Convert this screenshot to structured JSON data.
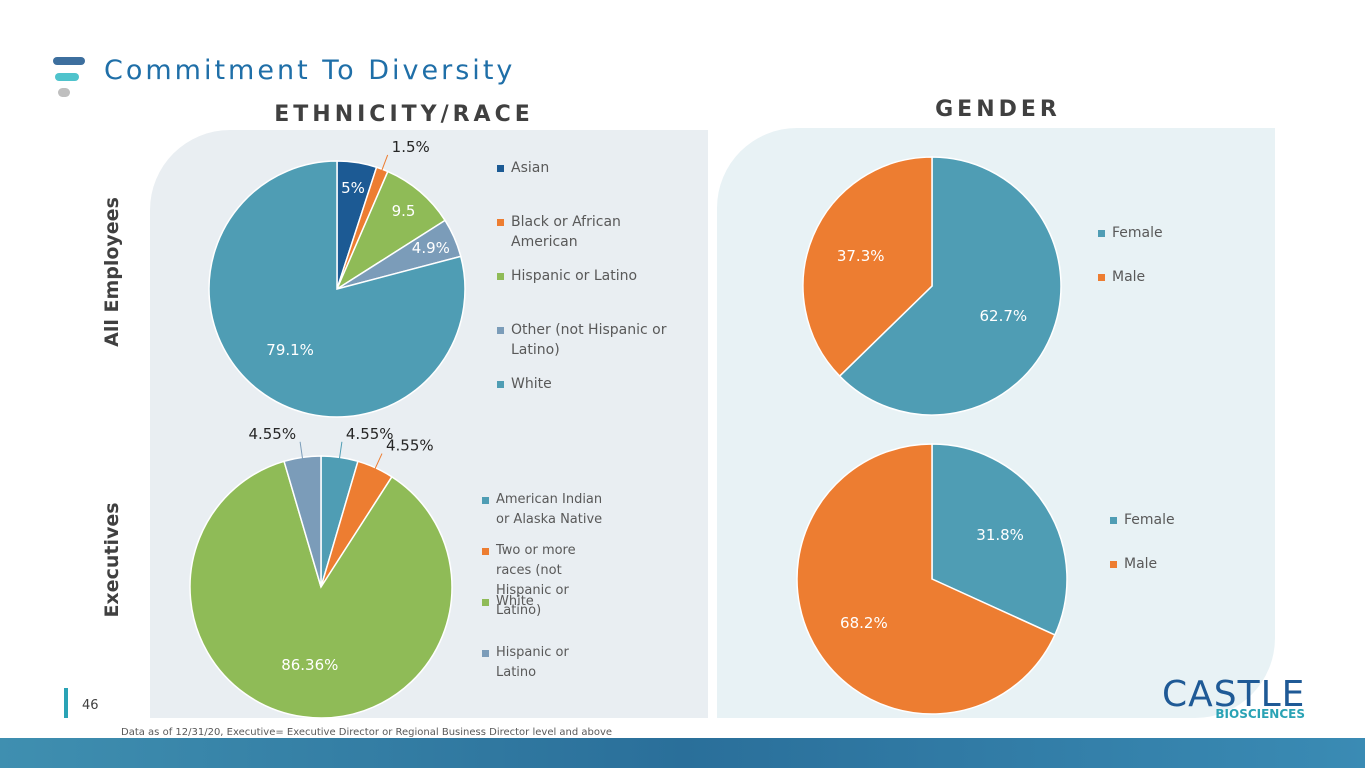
{
  "title": "Commitment To Diversity",
  "headers": {
    "ethnicity": "ETHNICITY/RACE",
    "gender": "GENDER"
  },
  "row_labels": {
    "all": "All Employees",
    "executives": "Executives"
  },
  "page_number": "46",
  "footnote": "Data as of 12/31/20, Executive= Executive Director or Regional Business Director level and above",
  "logo": {
    "name": "CASTLE",
    "sub": "BIOSCIENCES"
  },
  "chart_data": [
    {
      "type": "pie",
      "categories": [
        "Asian",
        "Black or African American",
        "Hispanic or Latino",
        "Other (not Hispanic or Latino)",
        "White"
      ],
      "values": [
        5,
        1.5,
        9.5,
        4.9,
        79.1
      ],
      "value_labels": [
        "5%",
        "1.5%",
        "9.5",
        "4.9%",
        "79.1%"
      ],
      "colors": [
        "#1c5a94",
        "#ed7d31",
        "#8fbb57",
        "#7b9cb9",
        "#4f9db4"
      ]
    },
    {
      "type": "pie",
      "categories": [
        "American Indian or Alaska Native",
        "Two or more races (not Hispanic or Latino)",
        "White",
        "Hispanic or Latino"
      ],
      "values": [
        4.55,
        4.55,
        86.36,
        4.55
      ],
      "value_labels": [
        "4.55%",
        "4.55%",
        "86.36%",
        "4.55%"
      ],
      "colors": [
        "#4f9db4",
        "#ed7d31",
        "#8fbb57",
        "#7b9cb9"
      ]
    },
    {
      "type": "pie",
      "categories": [
        "Female",
        "Male"
      ],
      "values": [
        62.7,
        37.3
      ],
      "value_labels": [
        "62.7%",
        "37.3%"
      ],
      "colors": [
        "#4f9db4",
        "#ed7d31"
      ]
    },
    {
      "type": "pie",
      "categories": [
        "Female",
        "Male"
      ],
      "values": [
        31.8,
        68.2
      ],
      "value_labels": [
        "31.8%",
        "68.2%"
      ],
      "colors": [
        "#4f9db4",
        "#ed7d31"
      ]
    }
  ]
}
